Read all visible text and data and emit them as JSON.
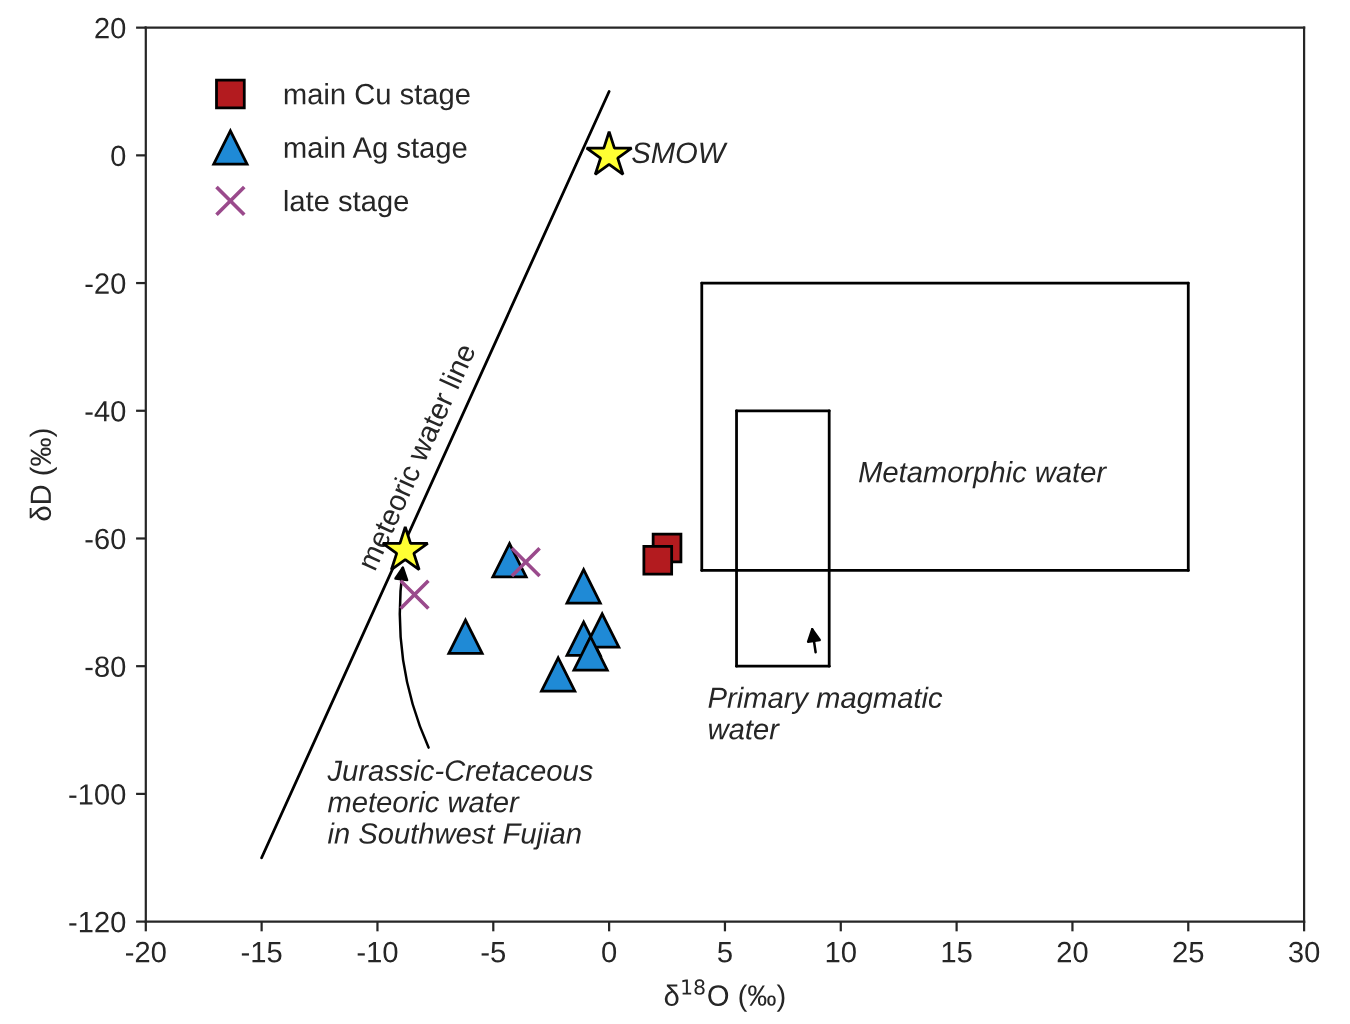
{
  "chart_data": {
    "type": "scatter",
    "xlabel": "δ$^{18}$O (‰)",
    "ylabel": "δD (‰)",
    "xlim": [
      -20,
      30
    ],
    "ylim": [
      -120,
      20
    ],
    "xticks": [
      -20,
      -15,
      -10,
      -5,
      0,
      5,
      10,
      15,
      20,
      25,
      30
    ],
    "yticks": [
      -120,
      -100,
      -80,
      -60,
      -40,
      -20,
      0,
      20
    ],
    "grid": false,
    "legend": "top left",
    "series": [
      {
        "name": "main Cu stage",
        "marker": "square",
        "color": "#b31b1f",
        "x": [
          2.5,
          2.1
        ],
        "values": [
          -61.5,
          -63.4
        ]
      },
      {
        "name": "main Ag stage",
        "marker": "triangle",
        "color": "#1f8ad6",
        "x": [
          -4.3,
          -1.1,
          -6.2,
          -1.1,
          -0.3,
          -0.8,
          -2.2
        ],
        "values": [
          -63.4,
          -67.5,
          -75.4,
          -75.7,
          -74.4,
          -78.0,
          -81.3
        ]
      },
      {
        "name": "late stage",
        "marker": "cross",
        "color": "#9a4a8c",
        "x": [
          -3.6,
          -8.4
        ],
        "values": [
          -63.7,
          -68.8
        ]
      },
      {
        "type": "line",
        "marker": "none",
        "color": "#000000",
        "x": [
          -15,
          0
        ],
        "values": [
          -110,
          10
        ]
      },
      {
        "type": "line",
        "marker": "none",
        "color": "#000000",
        "x": [
          4,
          25
        ],
        "values": [
          -20,
          -20
        ]
      },
      {
        "type": "line",
        "marker": "none",
        "color": "#000000",
        "x": [
          25,
          25
        ],
        "values": [
          -20,
          -65
        ]
      },
      {
        "type": "line",
        "marker": "none",
        "color": "#000000",
        "x": [
          25,
          4
        ],
        "values": [
          -65,
          -65
        ]
      },
      {
        "type": "line",
        "marker": "none",
        "color": "#000000",
        "x": [
          4,
          4
        ],
        "values": [
          -65,
          -20
        ]
      },
      {
        "type": "line",
        "marker": "none",
        "color": "#000000",
        "x": [
          5.5,
          9.5
        ],
        "values": [
          -40,
          -40
        ]
      },
      {
        "type": "line",
        "marker": "none",
        "color": "#000000",
        "x": [
          9.5,
          9.5
        ],
        "values": [
          -40,
          -80
        ]
      },
      {
        "type": "line",
        "marker": "none",
        "color": "#000000",
        "x": [
          9.5,
          5.5
        ],
        "values": [
          -80,
          -80
        ]
      },
      {
        "type": "line",
        "marker": "none",
        "color": "#000000",
        "x": [
          5.5,
          5.5
        ],
        "values": [
          -80,
          -40
        ]
      },
      {
        "marker": "star",
        "color": "#ffff33",
        "x": [
          0,
          -8.8
        ],
        "values": [
          0,
          -61.9
        ]
      }
    ],
    "annotations": [
      {
        "text": "SMOW",
        "x": 0,
        "y": 0
      },
      {
        "text": "meteoric water line",
        "x": -7.5,
        "y": -50
      },
      "Metamorphic water",
      "Primary magmatic\nwater",
      {
        "text": "Jurassic-Cretaceous\nmeteoric water\nin Southwest Fujian",
        "x": -8.8,
        "y": -62
      }
    ]
  }
}
